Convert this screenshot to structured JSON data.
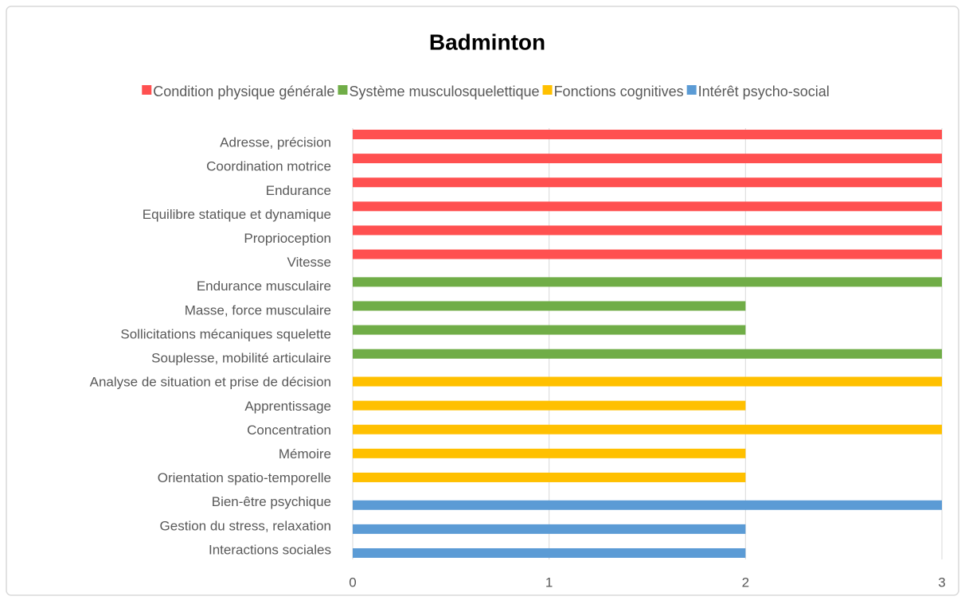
{
  "chart_data": {
    "type": "bar",
    "orientation": "horizontal",
    "title": "Badminton",
    "categories": [
      "Adresse, précision",
      "Coordination motrice",
      "Endurance",
      "Equilibre statique et dynamique",
      "Proprioception",
      "Vitesse",
      "Endurance musculaire",
      "Masse,  force musculaire",
      "Sollicitations mécaniques squelette",
      "Souplesse, mobilité articulaire",
      "Analyse de situation et prise de décision",
      "Apprentissage",
      "Concentration",
      "Mémoire",
      "Orientation spatio-temporelle",
      "Bien-être psychique",
      "Gestion du stress, relaxation",
      "Interactions sociales"
    ],
    "series": [
      {
        "name": "Condition physique générale",
        "color": "#ff5050",
        "values": [
          3,
          3,
          3,
          3,
          3,
          3,
          null,
          null,
          null,
          null,
          null,
          null,
          null,
          null,
          null,
          null,
          null,
          null
        ]
      },
      {
        "name": "Système musculosquelettique",
        "color": "#70ad47",
        "values": [
          null,
          null,
          null,
          null,
          null,
          null,
          3,
          2,
          2,
          3,
          null,
          null,
          null,
          null,
          null,
          null,
          null,
          null
        ]
      },
      {
        "name": "Fonctions cognitives",
        "color": "#ffc000",
        "values": [
          null,
          null,
          null,
          null,
          null,
          null,
          null,
          null,
          null,
          null,
          3,
          2,
          3,
          2,
          2,
          null,
          null,
          null
        ]
      },
      {
        "name": "Intérêt psycho-social",
        "color": "#5b9bd5",
        "values": [
          null,
          null,
          null,
          null,
          null,
          null,
          null,
          null,
          null,
          null,
          null,
          null,
          null,
          null,
          null,
          3,
          2,
          2
        ]
      }
    ],
    "xlim": [
      0,
      3
    ],
    "xticks": [
      0,
      1,
      2,
      3
    ],
    "grid": true,
    "legend": "top"
  }
}
